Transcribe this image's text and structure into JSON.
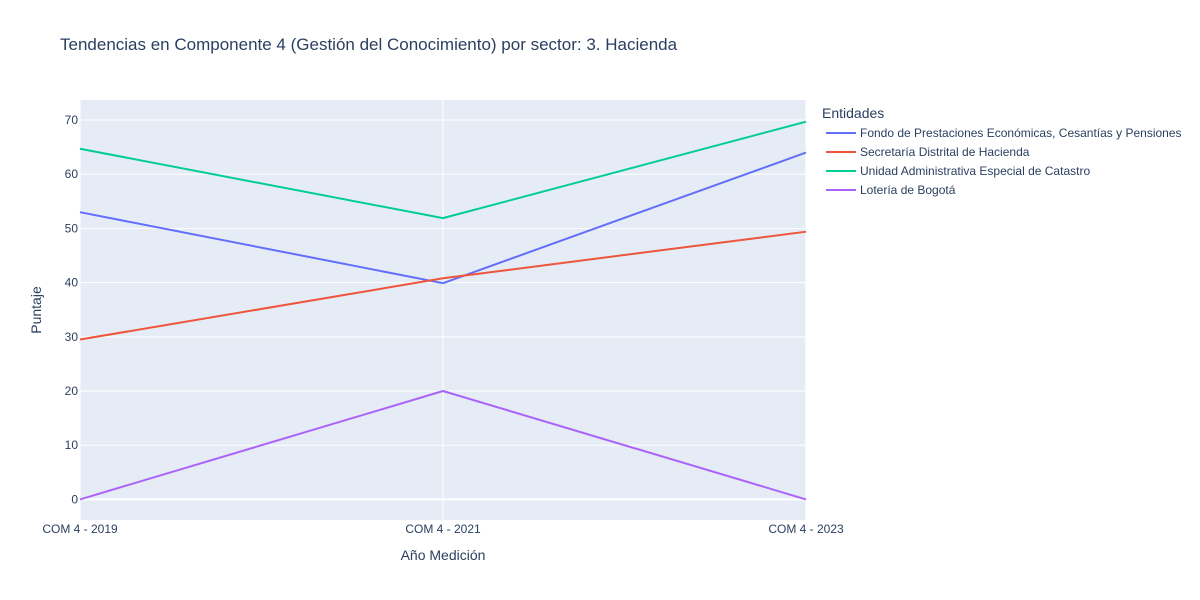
{
  "chart_data": {
    "type": "line",
    "title": "Tendencias en Componente 4 (Gestión del Conocimiento) por sector: 3. Hacienda",
    "xlabel": "Año Medición",
    "ylabel": "Puntaje",
    "categories": [
      "COM 4 - 2019",
      "COM 4 - 2021",
      "COM 4 - 2023"
    ],
    "ylim": [
      -3.8,
      73.7
    ],
    "yticks": [
      0,
      10,
      20,
      30,
      40,
      50,
      60,
      70
    ],
    "grid": true,
    "legend_title": "Entidades",
    "legend_position": "right",
    "series": [
      {
        "name": "Fondo de Prestaciones Económicas, Cesantías y Pensiones",
        "color": "#636efa",
        "values": [
          53.0,
          39.9,
          64.0
        ]
      },
      {
        "name": "Secretaría Distrital de Hacienda",
        "color": "#ef553b",
        "values": [
          29.5,
          40.8,
          49.4
        ]
      },
      {
        "name": "Unidad Administrativa Especial de Catastro",
        "color": "#00cc96",
        "values": [
          64.7,
          51.9,
          69.7
        ]
      },
      {
        "name": "Lotería de Bogotá",
        "color": "#ab63fa",
        "values": [
          0.0,
          20.0,
          0.0
        ]
      }
    ]
  }
}
